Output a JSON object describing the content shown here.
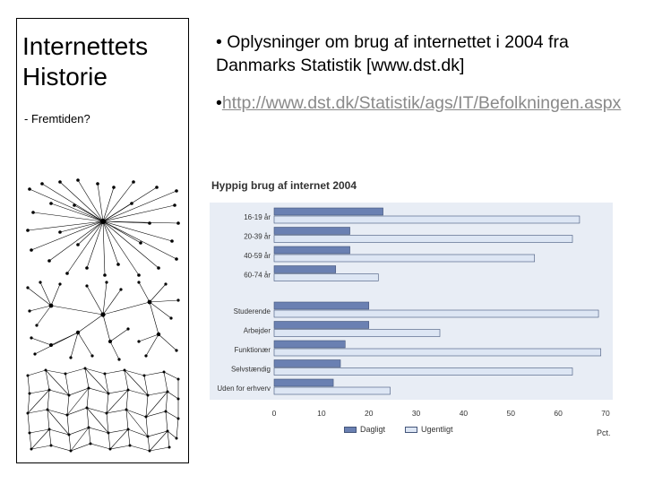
{
  "left": {
    "title_line1": "Internettets",
    "title_line2": "Historie",
    "subtitle": "- Fremtiden?"
  },
  "bullets": {
    "b1": "• Oplysninger om brug af internettet i 2004 fra Danmarks Statistik [www.dst.dk]",
    "b2_prefix": "•",
    "b2_link": "http://www.dst.dk/Statistik/ags/IT/Befolkningen.aspx"
  },
  "colors": {
    "dagligt": "#6a80b2",
    "ugentligt": "#dde6f4",
    "plot_bg": "#e8edf5",
    "axis": "#333333"
  },
  "chart_data": {
    "type": "bar",
    "orientation": "horizontal",
    "title": "Hyppig brug af internet 2004",
    "unit": "Pct.",
    "categories": [
      "16-19 år",
      "20-39 år",
      "40-59 år",
      "60-74 år",
      "Studerende",
      "Arbejder",
      "Funktionær",
      "Selvstændig",
      "Uden for erhverv"
    ],
    "groups": [
      [
        0,
        1,
        2,
        3
      ],
      [
        4,
        5,
        6,
        7,
        8
      ]
    ],
    "series": [
      {
        "name": "Dagligt",
        "values": [
          23,
          16,
          16,
          13,
          20,
          20,
          15,
          14,
          12.5
        ]
      },
      {
        "name": "Ugentligt",
        "values": [
          64.5,
          63,
          55,
          22,
          68.5,
          35,
          69,
          63,
          24.5
        ]
      }
    ],
    "xlim": [
      0,
      70
    ],
    "xticks": [
      "0",
      "10",
      "20",
      "30",
      "40",
      "50",
      "60",
      "70"
    ],
    "legend": "bottom"
  }
}
